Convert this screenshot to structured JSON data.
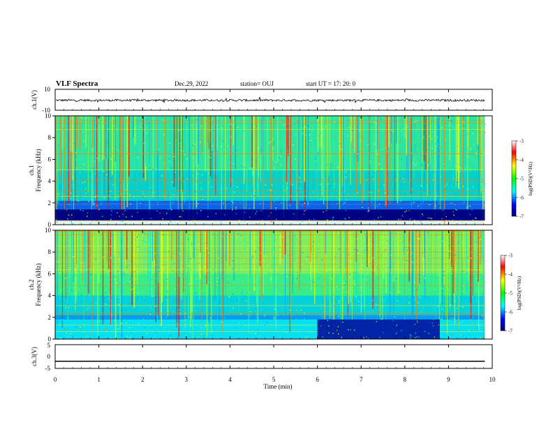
{
  "header": {
    "title": "VLF Spectra",
    "date": "Dec.29, 2022",
    "station": "station= OUJ",
    "start": "start  UT  =   17: 20: 0"
  },
  "chart_data": [
    {
      "type": "line",
      "name": "ch1-waveform",
      "ylabel": "ch.1(V)",
      "ylim": [
        -10,
        10
      ],
      "yticks": [
        "10",
        "-10"
      ],
      "baseline": -0.5,
      "noise_amplitude": 1.0
    },
    {
      "type": "heatmap",
      "name": "ch1-spectrogram",
      "ylabel": "ch.1\nFrequency  (kHz)",
      "ylim": [
        0,
        10
      ],
      "yticks": [
        "0",
        "2",
        "4",
        "6",
        "8",
        "10"
      ],
      "colorbar": {
        "label": "log(PSD)(V²/Hz)",
        "range": [
          -7,
          -3
        ],
        "ticks": [
          "-3",
          "-4",
          "-5",
          "-6",
          "-7"
        ]
      },
      "colors": {
        "low": "#00008b",
        "mid": "#00ff80",
        "high": "#ff0000"
      }
    },
    {
      "type": "heatmap",
      "name": "ch2-spectrogram",
      "ylabel": "ch.2\nFrequency  (kHz)",
      "ylim": [
        0,
        10
      ],
      "yticks": [
        "0",
        "2",
        "4",
        "6",
        "8",
        "10"
      ],
      "colorbar": {
        "label": "log(PSD)(V²/Hz)",
        "range": [
          -7,
          -3
        ],
        "ticks": [
          "-3",
          "-4",
          "-5",
          "-6",
          "-7"
        ]
      }
    },
    {
      "type": "line",
      "name": "ch3-waveform",
      "ylabel": "ch.3(V)",
      "ylim": [
        -5,
        5
      ],
      "yticks": [
        "5",
        "0",
        "-5"
      ],
      "baseline": -2.0
    }
  ],
  "time_axis": {
    "xlabel": "Time  (min)",
    "xlim": [
      0,
      10
    ],
    "ticks": [
      "0",
      "1",
      "2",
      "3",
      "4",
      "5",
      "6",
      "7",
      "8",
      "9",
      "10"
    ],
    "data_end": 9.83
  }
}
